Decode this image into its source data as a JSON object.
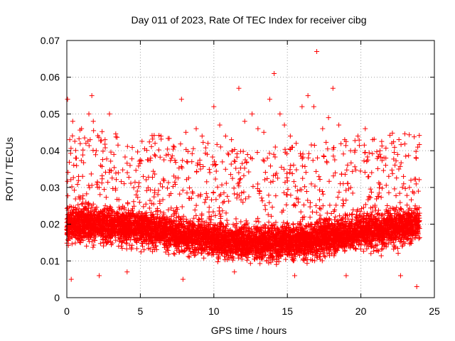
{
  "chart_data": {
    "type": "scatter",
    "title": "Day 011 of 2023, Rate Of TEC Index for receiver cibg",
    "xlabel": "GPS time / hours",
    "ylabel": "ROTI / TECUs",
    "xlim": [
      0,
      25
    ],
    "ylim": [
      0,
      0.07
    ],
    "xticks": [
      0,
      5,
      10,
      15,
      20,
      25
    ],
    "yticks": [
      0,
      0.01,
      0.02,
      0.03,
      0.04,
      0.05,
      0.06,
      0.07
    ],
    "xtick_labels": [
      "0",
      "5",
      "10",
      "15",
      "20",
      "25"
    ],
    "ytick_labels": [
      "0",
      "0.01",
      "0.02",
      "0.03",
      "0.04",
      "0.05",
      "0.06",
      "0.07"
    ],
    "grid": true,
    "marker": "plus",
    "color": "#ff0000",
    "data_x_range": [
      0,
      24
    ],
    "series": [
      {
        "points": [
          [
            0.05,
            0.054
          ],
          [
            0.2,
            0.043
          ],
          [
            0.4,
            0.048
          ],
          [
            0.6,
            0.038
          ],
          [
            0.8,
            0.033
          ],
          [
            1.0,
            0.046
          ],
          [
            1.3,
            0.042
          ],
          [
            1.5,
            0.05
          ],
          [
            1.7,
            0.055
          ],
          [
            1.8,
            0.048
          ],
          [
            2.0,
            0.04
          ],
          [
            2.3,
            0.036
          ],
          [
            2.6,
            0.043
          ],
          [
            2.9,
            0.05
          ],
          [
            3.2,
            0.039
          ],
          [
            3.5,
            0.034
          ],
          [
            3.9,
            0.031
          ],
          [
            4.3,
            0.036
          ],
          [
            4.8,
            0.029
          ],
          [
            5.2,
            0.033
          ],
          [
            5.7,
            0.038
          ],
          [
            6.0,
            0.042
          ],
          [
            6.4,
            0.044
          ],
          [
            6.9,
            0.039
          ],
          [
            7.3,
            0.041
          ],
          [
            7.8,
            0.054
          ],
          [
            8.1,
            0.045
          ],
          [
            8.5,
            0.037
          ],
          [
            8.8,
            0.046
          ],
          [
            9.2,
            0.044
          ],
          [
            9.6,
            0.042
          ],
          [
            10.0,
            0.052
          ],
          [
            10.4,
            0.047
          ],
          [
            10.8,
            0.044
          ],
          [
            11.2,
            0.043
          ],
          [
            11.7,
            0.057
          ],
          [
            12.1,
            0.048
          ],
          [
            12.6,
            0.05
          ],
          [
            13.0,
            0.046
          ],
          [
            13.4,
            0.045
          ],
          [
            13.8,
            0.054
          ],
          [
            14.1,
            0.061
          ],
          [
            14.5,
            0.05
          ],
          [
            14.8,
            0.047
          ],
          [
            15.2,
            0.044
          ],
          [
            15.6,
            0.042
          ],
          [
            16.0,
            0.052
          ],
          [
            16.4,
            0.055
          ],
          [
            16.8,
            0.052
          ],
          [
            17.0,
            0.067
          ],
          [
            17.4,
            0.046
          ],
          [
            17.8,
            0.049
          ],
          [
            18.1,
            0.057
          ],
          [
            18.5,
            0.047
          ],
          [
            18.9,
            0.043
          ],
          [
            19.3,
            0.04
          ],
          [
            19.8,
            0.044
          ],
          [
            20.3,
            0.046
          ],
          [
            20.8,
            0.043
          ],
          [
            21.3,
            0.04
          ],
          [
            21.7,
            0.038
          ],
          [
            22.1,
            0.042
          ],
          [
            22.5,
            0.039
          ],
          [
            22.9,
            0.033
          ],
          [
            23.3,
            0.03
          ],
          [
            23.7,
            0.025
          ],
          [
            23.9,
            0.021
          ],
          [
            0.3,
            0.005
          ],
          [
            2.2,
            0.006
          ],
          [
            4.1,
            0.007
          ],
          [
            7.9,
            0.005
          ],
          [
            11.4,
            0.007
          ],
          [
            15.5,
            0.006
          ],
          [
            19.0,
            0.006
          ],
          [
            22.7,
            0.006
          ],
          [
            23.8,
            0.003
          ]
        ]
      }
    ]
  }
}
